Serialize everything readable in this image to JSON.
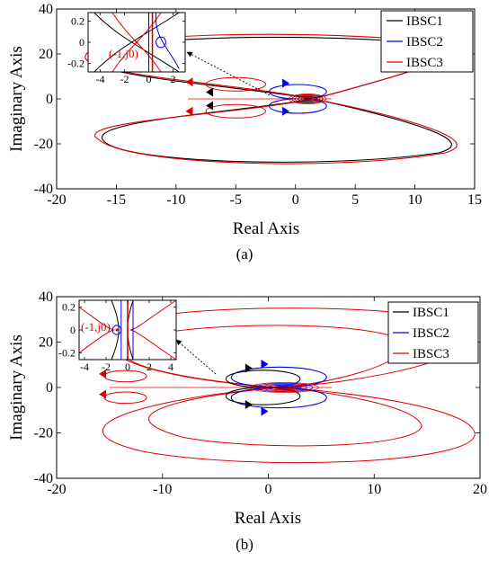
{
  "chart_data": [
    {
      "panel": "(a)",
      "type": "line",
      "xlabel": "Real Axis",
      "ylabel": "Imaginary Axis",
      "xlim": [
        -20,
        15
      ],
      "ylim": [
        -40,
        40
      ],
      "xticks": [
        "-20",
        "-15",
        "-10",
        "-5",
        "0",
        "5",
        "10",
        "15"
      ],
      "yticks": [
        "-40",
        "-20",
        "0",
        "20",
        "40"
      ],
      "legend_position": "top-right",
      "grid": false,
      "series": [
        {
          "name": "IBSC1",
          "color": "#000000",
          "values": {
            "real_min": -16,
            "real_max": 14.5,
            "imag_max": 30
          }
        },
        {
          "name": "IBSC2",
          "color": "#0000e0",
          "values": {
            "real_min": -2,
            "real_max": 2.5,
            "imag_max": 7
          }
        },
        {
          "name": "IBSC3",
          "color": "#e00000",
          "values": {
            "real_min": -16,
            "real_max": 14.5,
            "imag_max": 31
          }
        }
      ],
      "inset": {
        "xticks": [
          "-4",
          "-2",
          "0",
          "2"
        ],
        "yticks": [
          "0.2",
          "0",
          "-0.2"
        ],
        "xlim": [
          -5,
          3
        ],
        "ylim": [
          -0.28,
          0.28
        ],
        "annotation": "(-1,j0)"
      }
    },
    {
      "panel": "(b)",
      "type": "line",
      "xlabel": "Real Axis",
      "ylabel": "Imaginary Axis",
      "xlim": [
        -20,
        20
      ],
      "ylim": [
        -40,
        40
      ],
      "xticks": [
        "-20",
        "-10",
        "0",
        "10",
        "20"
      ],
      "yticks": [
        "-40",
        "-20",
        "0",
        "20",
        "40"
      ],
      "legend_position": "top-right",
      "grid": false,
      "series": [
        {
          "name": "IBSC1",
          "color": "#000000",
          "values": {
            "real_min": -3.5,
            "real_max": 3,
            "imag_max": 7.5
          }
        },
        {
          "name": "IBSC2",
          "color": "#0000e0",
          "values": {
            "real_min": -3.5,
            "real_max": 6,
            "imag_max": 9
          }
        },
        {
          "name": "IBSC3",
          "color": "#e00000",
          "values": {
            "real_min": -20,
            "real_max": 20,
            "imag_max": 37
          }
        }
      ],
      "inset": {
        "xticks": [
          "-4",
          "-2",
          "0",
          "2",
          "4"
        ],
        "yticks": [
          "0.2",
          "0",
          "-0.2"
        ],
        "xlim": [
          -4.5,
          4.5
        ],
        "ylim": [
          -0.26,
          0.26
        ],
        "annotation": "(-1,j0)"
      }
    }
  ]
}
